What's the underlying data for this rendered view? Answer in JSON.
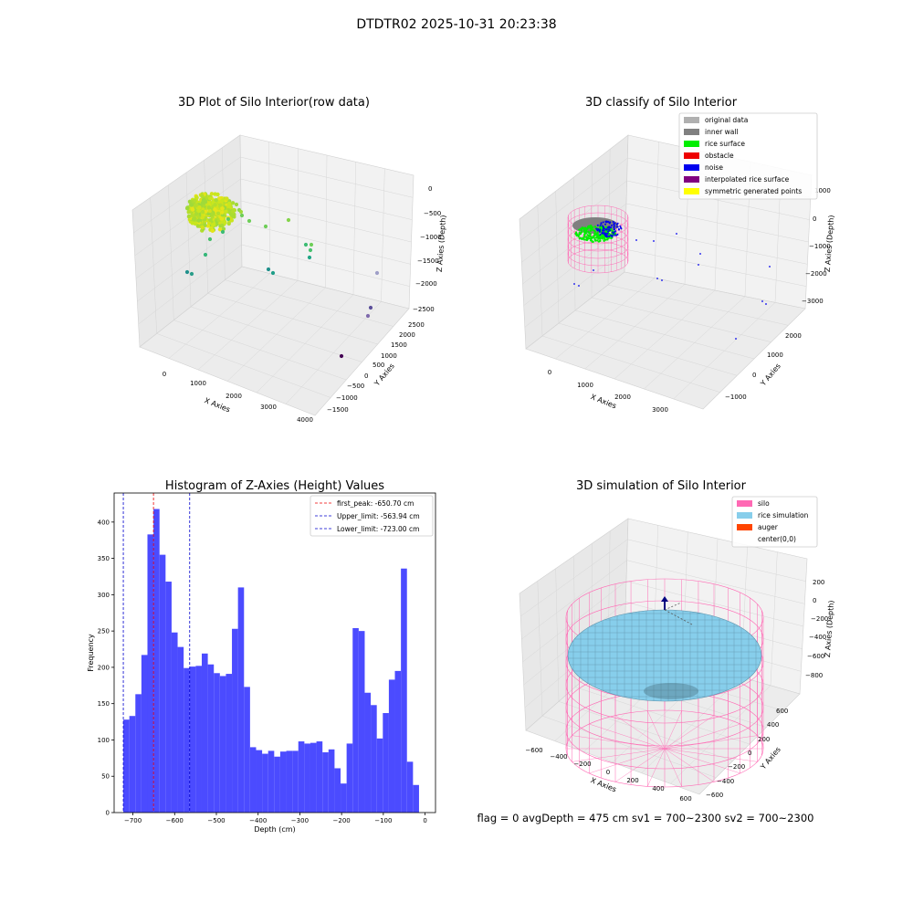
{
  "suptitle": "DTDTR02 2025-10-31 20:23:38",
  "footer": "flag = 0     avgDepth = 475 cm  sv1 = 700~2300  sv2 = 700~2300",
  "chart_data": [
    {
      "id": "raw",
      "type": "scatter",
      "title": "3D Plot of Silo Interior(row data)",
      "xlabel": "X Axies",
      "ylabel": "Y Axies",
      "zlabel": "Z Axies (Depth)",
      "x_ticks": [
        "0",
        "1000",
        "2000",
        "3000",
        "4000"
      ],
      "y_ticks": [
        "−1500",
        "−1000",
        "−500",
        "0",
        "500",
        "1000",
        "1500",
        "2000",
        "2500"
      ],
      "z_ticks": [
        "0",
        "−500",
        "−1000",
        "−1500",
        "−2000",
        "−2500"
      ]
    },
    {
      "id": "classify",
      "type": "scatter",
      "title": "3D classify of Silo Interior",
      "xlabel": "X Axies",
      "ylabel": "Y Axies",
      "zlabel": "Z Axies (Depth)",
      "x_ticks": [
        "0",
        "1000",
        "2000",
        "3000"
      ],
      "y_ticks": [
        "−1000",
        "0",
        "1000",
        "2000"
      ],
      "z_ticks": [
        "1000",
        "0",
        "−1000",
        "−2000",
        "−3000"
      ],
      "legend_position": "top-right",
      "legend": [
        {
          "label": "original data",
          "color": "#b0b0b0"
        },
        {
          "label": "inner wall",
          "color": "#808080"
        },
        {
          "label": "rice surface",
          "color": "#00ee00"
        },
        {
          "label": "obstacle",
          "color": "#ee0000"
        },
        {
          "label": "noise",
          "color": "#0000ee"
        },
        {
          "label": "interpolated rice surface",
          "color": "#800080"
        },
        {
          "label": "symmetric generated points",
          "color": "#ffff00"
        }
      ]
    },
    {
      "id": "hist",
      "type": "bar",
      "title": "Histogram of Z-Axies (Height) Values",
      "xlabel": "Depth (cm)",
      "ylabel": "Frequency",
      "xlim": [
        -745,
        25
      ],
      "ylim": [
        0,
        440
      ],
      "x_ticks": [
        -700,
        -600,
        -500,
        -400,
        -300,
        -200,
        -100,
        0
      ],
      "y_ticks": [
        0,
        50,
        100,
        150,
        200,
        250,
        300,
        350,
        400
      ],
      "bar_color": "#4b4bff",
      "bin_start": -723.0,
      "bin_width": 14.46,
      "values": [
        128,
        133,
        163,
        217,
        383,
        418,
        355,
        318,
        248,
        228,
        199,
        201,
        202,
        219,
        204,
        192,
        188,
        191,
        253,
        310,
        173,
        90,
        86,
        81,
        85,
        77,
        84,
        85,
        85,
        98,
        95,
        96,
        98,
        83,
        87,
        61,
        40,
        95,
        254,
        250,
        165,
        148,
        102,
        137,
        183,
        195,
        336,
        70,
        38
      ],
      "lines": [
        {
          "label": "first_peak: -650.70 cm",
          "x": -650.7,
          "color": "#ee0000"
        },
        {
          "label": "Upper_limit: -563.94 cm",
          "x": -563.94,
          "color": "#0000cc"
        },
        {
          "label": "Lower_limit: -723.00 cm",
          "x": -723.0,
          "color": "#0000cc"
        }
      ],
      "legend_position": "top-right"
    },
    {
      "id": "sim",
      "type": "scatter",
      "title": "3D simulation of Silo Interior",
      "xlabel": "X Axies",
      "ylabel": "Y Axies",
      "zlabel": "Z Axies (Depth)",
      "x_ticks": [
        "−600",
        "−400",
        "−200",
        "0",
        "200",
        "400",
        "600"
      ],
      "y_ticks": [
        "−600",
        "−400",
        "−200",
        "0",
        "200",
        "400",
        "600"
      ],
      "z_ticks": [
        "200",
        "0",
        "−200",
        "−400",
        "−600",
        "−800"
      ],
      "legend_position": "top-right",
      "legend": [
        {
          "label": "silo",
          "color": "#ff69b4"
        },
        {
          "label": "rice simulation",
          "color": "#87ceeb"
        },
        {
          "label": "auger",
          "color": "#ff4500"
        },
        {
          "label": "center(0,0)",
          "color": ""
        }
      ]
    }
  ]
}
